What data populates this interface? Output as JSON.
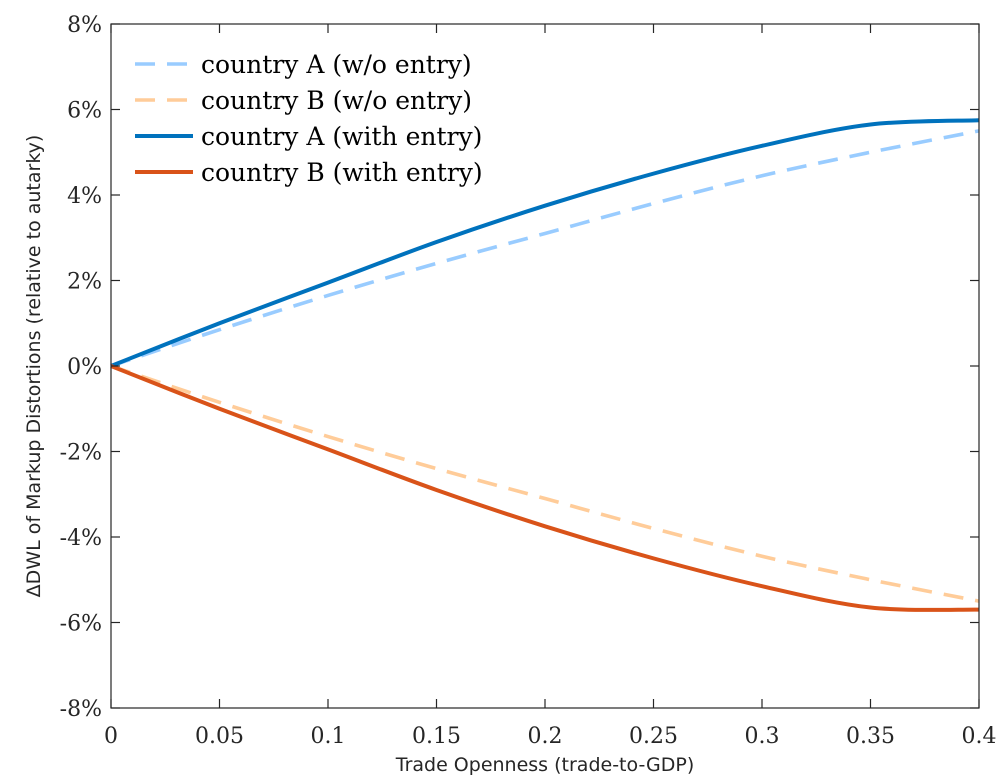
{
  "chart_data": {
    "type": "line",
    "xlabel": "Trade Openness (trade-to-GDP)",
    "ylabel": "ΔDWL of Markup Distortions (relative to autarky)",
    "xlim": [
      0,
      0.4
    ],
    "ylim": [
      -8,
      8
    ],
    "x_ticks": [
      0,
      0.05,
      0.1,
      0.15,
      0.2,
      0.25,
      0.3,
      0.35,
      0.4
    ],
    "x_tick_labels": [
      "0",
      "0.05",
      "0.1",
      "0.15",
      "0.2",
      "0.25",
      "0.3",
      "0.35",
      "0.4"
    ],
    "y_ticks": [
      -8,
      -6,
      -4,
      -2,
      0,
      2,
      4,
      6,
      8
    ],
    "y_tick_labels": [
      "-8%",
      "-6%",
      "-4%",
      "-2%",
      "0%",
      "2%",
      "4%",
      "6%",
      "8%"
    ],
    "grid": false,
    "legend_position": "top-left",
    "x": [
      0,
      0.05,
      0.1,
      0.15,
      0.2,
      0.25,
      0.3,
      0.35,
      0.4
    ],
    "series": [
      {
        "name": "country A (w/o entry)",
        "color": "#99CCFF",
        "style": "dashed",
        "values": [
          0,
          0.85,
          1.65,
          2.4,
          3.1,
          3.8,
          4.45,
          5.0,
          5.5
        ]
      },
      {
        "name": "country B (w/o entry)",
        "color": "#FFCC99",
        "style": "dashed",
        "values": [
          0,
          -0.85,
          -1.65,
          -2.4,
          -3.1,
          -3.8,
          -4.45,
          -5.0,
          -5.5
        ]
      },
      {
        "name": "country A (with entry)",
        "color": "#0072BD",
        "style": "solid",
        "values": [
          0,
          1.0,
          1.95,
          2.9,
          3.75,
          4.5,
          5.15,
          5.65,
          5.75
        ]
      },
      {
        "name": "country B (with entry)",
        "color": "#D95319",
        "style": "solid",
        "values": [
          0,
          -1.0,
          -1.95,
          -2.9,
          -3.75,
          -4.5,
          -5.15,
          -5.65,
          -5.7
        ]
      }
    ]
  }
}
